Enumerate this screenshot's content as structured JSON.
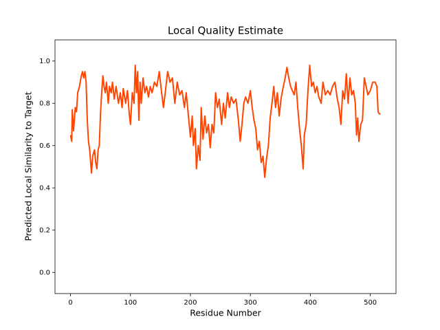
{
  "chart_data": {
    "type": "line",
    "title": "Local Quality Estimate",
    "x_label": "Residue Number",
    "y_label": "Predicted Local Similarity to Target",
    "x": [
      0,
      2,
      3,
      5,
      8,
      10,
      12,
      15,
      18,
      20,
      22,
      24,
      26,
      28,
      30,
      32,
      35,
      37,
      40,
      42,
      44,
      46,
      48,
      50,
      52,
      54,
      56,
      58,
      60,
      63,
      65,
      68,
      70,
      73,
      76,
      80,
      83,
      86,
      88,
      92,
      95,
      98,
      100,
      103,
      106,
      108,
      110,
      112,
      114,
      116,
      118,
      121,
      124,
      127,
      130,
      133,
      136,
      140,
      144,
      148,
      152,
      155,
      158,
      162,
      166,
      170,
      174,
      178,
      182,
      186,
      190,
      193,
      196,
      198,
      200,
      203,
      205,
      208,
      210,
      213,
      216,
      218,
      221,
      224,
      227,
      230,
      233,
      236,
      239,
      242,
      245,
      248,
      252,
      255,
      258,
      262,
      265,
      268,
      272,
      276,
      280,
      283,
      286,
      289,
      292,
      296,
      300,
      303,
      306,
      309,
      312,
      315,
      318,
      321,
      324,
      327,
      330,
      333,
      336,
      339,
      342,
      345,
      348,
      351,
      355,
      358,
      361,
      364,
      367,
      370,
      373,
      376,
      379,
      382,
      385,
      388,
      390,
      393,
      396,
      399,
      402,
      405,
      408,
      411,
      414,
      418,
      421,
      425,
      429,
      433,
      437,
      441,
      445,
      448,
      451,
      454,
      457,
      460,
      463,
      466,
      469,
      472,
      475,
      477,
      479,
      481,
      484,
      487,
      490,
      493,
      496,
      500,
      504,
      508,
      511,
      513,
      515,
      517
    ],
    "values": [
      0.65,
      0.62,
      0.77,
      0.67,
      0.78,
      0.76,
      0.85,
      0.88,
      0.93,
      0.95,
      0.92,
      0.95,
      0.9,
      0.72,
      0.62,
      0.58,
      0.47,
      0.55,
      0.58,
      0.52,
      0.49,
      0.58,
      0.6,
      0.75,
      0.85,
      0.93,
      0.88,
      0.85,
      0.9,
      0.8,
      0.88,
      0.85,
      0.9,
      0.82,
      0.88,
      0.8,
      0.85,
      0.78,
      0.87,
      0.8,
      0.86,
      0.75,
      0.7,
      0.85,
      0.8,
      0.98,
      0.85,
      0.95,
      0.72,
      0.9,
      0.8,
      0.92,
      0.85,
      0.88,
      0.83,
      0.88,
      0.85,
      0.9,
      0.88,
      0.95,
      0.85,
      0.78,
      0.85,
      0.95,
      0.9,
      0.92,
      0.8,
      0.9,
      0.84,
      0.86,
      0.78,
      0.85,
      0.76,
      0.7,
      0.64,
      0.74,
      0.6,
      0.68,
      0.49,
      0.6,
      0.53,
      0.78,
      0.63,
      0.74,
      0.66,
      0.7,
      0.59,
      0.7,
      0.66,
      0.85,
      0.78,
      0.82,
      0.7,
      0.8,
      0.73,
      0.85,
      0.78,
      0.83,
      0.8,
      0.82,
      0.72,
      0.62,
      0.7,
      0.8,
      0.83,
      0.8,
      0.86,
      0.78,
      0.72,
      0.68,
      0.58,
      0.62,
      0.52,
      0.55,
      0.45,
      0.54,
      0.6,
      0.73,
      0.8,
      0.88,
      0.78,
      0.85,
      0.74,
      0.82,
      0.88,
      0.92,
      0.97,
      0.92,
      0.88,
      0.86,
      0.84,
      0.9,
      0.78,
      0.68,
      0.6,
      0.49,
      0.65,
      0.7,
      0.86,
      0.98,
      0.88,
      0.9,
      0.85,
      0.88,
      0.83,
      0.8,
      0.9,
      0.84,
      0.86,
      0.84,
      0.88,
      0.9,
      0.82,
      0.78,
      0.7,
      0.86,
      0.82,
      0.94,
      0.8,
      0.92,
      0.84,
      0.86,
      0.8,
      0.65,
      0.73,
      0.62,
      0.7,
      0.72,
      0.92,
      0.88,
      0.84,
      0.86,
      0.9,
      0.9,
      0.88,
      0.76,
      0.75,
      0.75
    ],
    "color": "#ff4500",
    "xlim": [
      -25.85,
      542.85
    ],
    "xticks": [
      0,
      100,
      200,
      300,
      400,
      500
    ],
    "ylim": [
      -0.1,
      1.1
    ],
    "yticks": [
      {
        "value": 0,
        "label": "0.0"
      },
      0.2,
      0.4,
      0.6,
      0.8,
      {
        "value": 1,
        "label": "1.0"
      }
    ],
    "grid": false
  }
}
